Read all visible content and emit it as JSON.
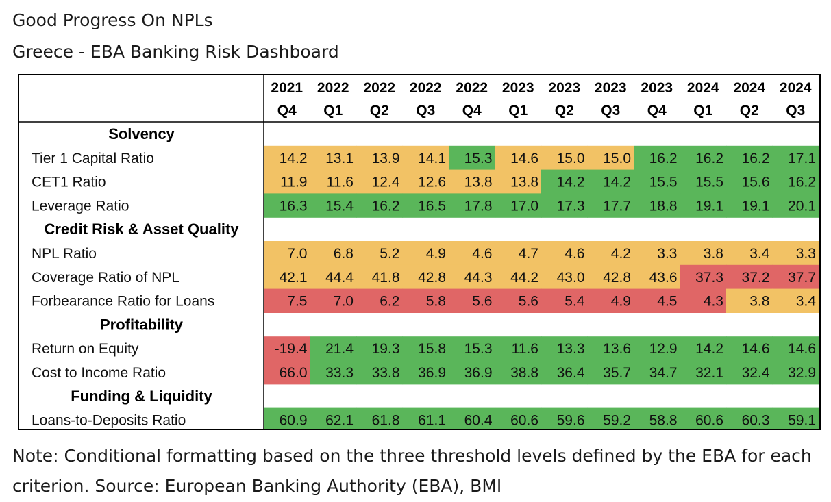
{
  "title": "Good Progress On NPLs",
  "subtitle": "Greece - EBA Banking Risk Dashboard",
  "note": "Note: Conditional formatting based on the three threshold levels defined by the EBA for each criterion. Source: European Banking Authority (EBA), BMI",
  "colors": {
    "green": "#5ab65a",
    "amber": "#f2c265",
    "red": "#e06666",
    "header_bg": "#ffffff",
    "section_bg": "#ffffff"
  },
  "chart_data": {
    "type": "table",
    "columns": [
      {
        "year": "2021",
        "quarter": "Q4"
      },
      {
        "year": "2022",
        "quarter": "Q1"
      },
      {
        "year": "2022",
        "quarter": "Q2"
      },
      {
        "year": "2022",
        "quarter": "Q3"
      },
      {
        "year": "2022",
        "quarter": "Q4"
      },
      {
        "year": "2023",
        "quarter": "Q1"
      },
      {
        "year": "2023",
        "quarter": "Q2"
      },
      {
        "year": "2023",
        "quarter": "Q3"
      },
      {
        "year": "2023",
        "quarter": "Q4"
      },
      {
        "year": "2024",
        "quarter": "Q1"
      },
      {
        "year": "2024",
        "quarter": "Q2"
      },
      {
        "year": "2024",
        "quarter": "Q3"
      }
    ],
    "sections": [
      {
        "name": "Solvency",
        "rows": [
          {
            "label": "Tier 1 Capital Ratio",
            "values": [
              "14.2",
              "13.1",
              "13.9",
              "14.1",
              "15.3",
              "14.6",
              "15.0",
              "15.0",
              "16.2",
              "16.2",
              "16.2",
              "17.1"
            ],
            "status": [
              "amber",
              "amber",
              "amber",
              "amber",
              "green",
              "amber",
              "amber",
              "amber",
              "green",
              "green",
              "green",
              "green"
            ]
          },
          {
            "label": "CET1 Ratio",
            "values": [
              "11.9",
              "11.6",
              "12.4",
              "12.6",
              "13.8",
              "13.8",
              "14.2",
              "14.2",
              "15.5",
              "15.5",
              "15.6",
              "16.2"
            ],
            "status": [
              "amber",
              "amber",
              "amber",
              "amber",
              "amber",
              "amber",
              "green",
              "green",
              "green",
              "green",
              "green",
              "green"
            ]
          },
          {
            "label": "Leverage Ratio",
            "values": [
              "16.3",
              "15.4",
              "16.2",
              "16.5",
              "17.8",
              "17.0",
              "17.3",
              "17.7",
              "18.8",
              "19.1",
              "19.1",
              "20.1"
            ],
            "status": [
              "green",
              "green",
              "green",
              "green",
              "green",
              "green",
              "green",
              "green",
              "green",
              "green",
              "green",
              "green"
            ]
          }
        ]
      },
      {
        "name": "Credit Risk & Asset Quality",
        "rows": [
          {
            "label": "NPL Ratio",
            "values": [
              "7.0",
              "6.8",
              "5.2",
              "4.9",
              "4.6",
              "4.7",
              "4.6",
              "4.2",
              "3.3",
              "3.8",
              "3.4",
              "3.3"
            ],
            "status": [
              "amber",
              "amber",
              "amber",
              "amber",
              "amber",
              "amber",
              "amber",
              "amber",
              "amber",
              "amber",
              "amber",
              "amber"
            ]
          },
          {
            "label": "Coverage Ratio of NPL",
            "values": [
              "42.1",
              "44.4",
              "41.8",
              "42.8",
              "44.3",
              "44.2",
              "43.0",
              "42.8",
              "43.6",
              "37.3",
              "37.2",
              "37.7"
            ],
            "status": [
              "amber",
              "amber",
              "amber",
              "amber",
              "amber",
              "amber",
              "amber",
              "amber",
              "amber",
              "red",
              "red",
              "red"
            ]
          },
          {
            "label": "Forbearance Ratio for Loans",
            "values": [
              "7.5",
              "7.0",
              "6.2",
              "5.8",
              "5.6",
              "5.6",
              "5.4",
              "4.9",
              "4.5",
              "4.3",
              "3.8",
              "3.4"
            ],
            "status": [
              "red",
              "red",
              "red",
              "red",
              "red",
              "red",
              "red",
              "red",
              "red",
              "red",
              "amber",
              "amber"
            ]
          }
        ]
      },
      {
        "name": "Profitability",
        "rows": [
          {
            "label": "Return on Equity",
            "values": [
              "-19.4",
              "21.4",
              "19.3",
              "15.8",
              "15.3",
              "11.6",
              "13.3",
              "13.6",
              "12.9",
              "14.2",
              "14.6",
              "14.6"
            ],
            "status": [
              "red",
              "green",
              "green",
              "green",
              "green",
              "green",
              "green",
              "green",
              "green",
              "green",
              "green",
              "green"
            ]
          },
          {
            "label": "Cost to Income Ratio",
            "values": [
              "66.0",
              "33.3",
              "33.8",
              "36.9",
              "36.9",
              "38.8",
              "36.4",
              "35.7",
              "34.7",
              "32.1",
              "32.4",
              "32.9"
            ],
            "status": [
              "red",
              "green",
              "green",
              "green",
              "green",
              "green",
              "green",
              "green",
              "green",
              "green",
              "green",
              "green"
            ]
          }
        ]
      },
      {
        "name": "Funding & Liquidity",
        "rows": [
          {
            "label": "Loans-to-Deposits Ratio",
            "values": [
              "60.9",
              "62.1",
              "61.8",
              "61.1",
              "60.4",
              "60.6",
              "59.6",
              "59.2",
              "58.8",
              "60.6",
              "60.3",
              "59.1"
            ],
            "status": [
              "green",
              "green",
              "green",
              "green",
              "green",
              "green",
              "green",
              "green",
              "green",
              "green",
              "green",
              "green"
            ]
          }
        ]
      }
    ]
  }
}
